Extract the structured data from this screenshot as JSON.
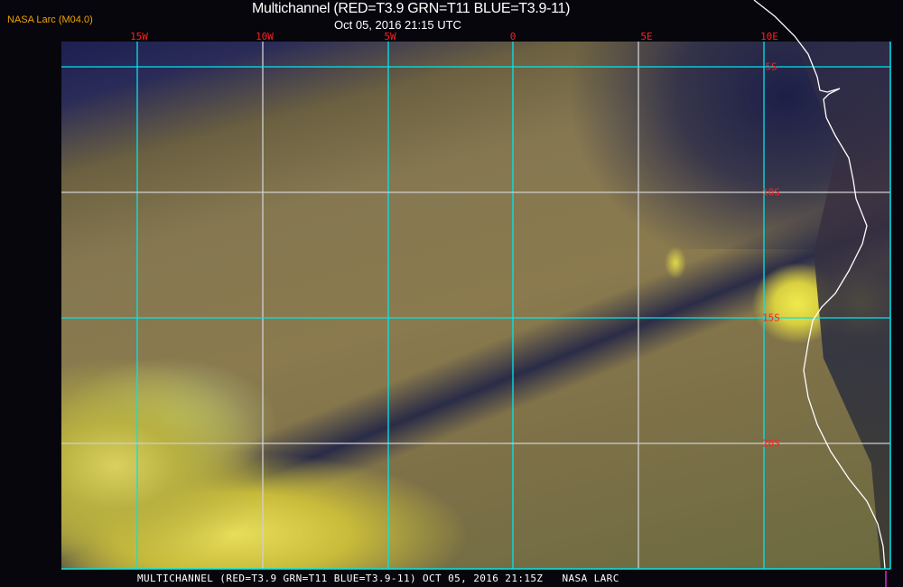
{
  "header": {
    "credit": "NASA Larc (M04.0)",
    "title": "Multichannel (RED=T3.9 GRN=T11 BLUE=T3.9-11)",
    "subtitle": "Oct 05, 2016 21:15 UTC"
  },
  "map": {
    "longitude_labels": [
      "15W",
      "10W",
      "5W",
      "0",
      "5E",
      "10E"
    ],
    "latitude_labels": [
      "5S",
      "10S",
      "15S",
      "20S"
    ],
    "grid_colors": {
      "primary": "#00e5ee",
      "secondary": "#d0d0d0"
    },
    "label_color": "#ff2020",
    "coastline_color": "#ffffff"
  },
  "footer": {
    "caption": "MULTICHANNEL (RED=T3.9 GRN=T11 BLUE=T3.9-11) OCT 05, 2016 21:15Z   NASA LARC"
  }
}
